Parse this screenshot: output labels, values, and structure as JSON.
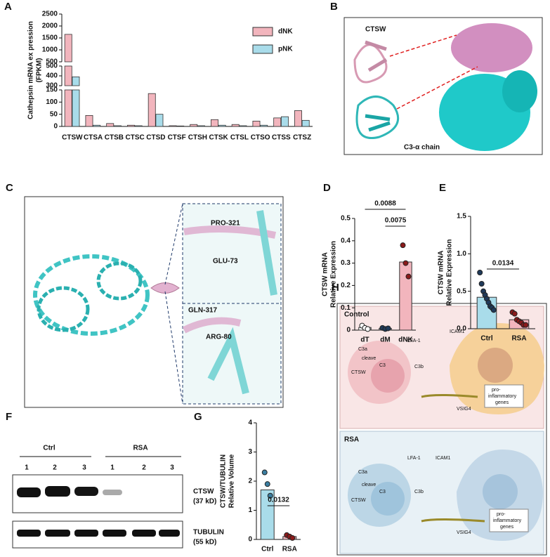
{
  "chart_data": [
    {
      "panel": "A",
      "type": "bar",
      "categories": [
        "CTSW",
        "CTSA",
        "CTSB",
        "CTSC",
        "CTSD",
        "CTSF",
        "CTSH",
        "CTSK",
        "CTSL",
        "CTSO",
        "CTSS",
        "CTSZ"
      ],
      "series": [
        {
          "name": "dNK",
          "color": "#f2b5bd",
          "values": [
            1650,
            45,
            12,
            5,
            135,
            3,
            8,
            28,
            8,
            22,
            35,
            65
          ]
        },
        {
          "name": "pNK",
          "color": "#a9dcea",
          "values": [
            390,
            5,
            3,
            3,
            50,
            2,
            3,
            5,
            3,
            5,
            40,
            25
          ]
        }
      ],
      "ylabel": "Cathepsin mRNA ex pression",
      "ylabel_unit": "(FPKM)",
      "y_segments": [
        {
          "ylim": [
            0,
            150
          ],
          "yticks": [
            0,
            50,
            100,
            150
          ]
        },
        {
          "ylim": [
            300,
            500
          ],
          "yticks": [
            300,
            400,
            500
          ]
        },
        {
          "ylim": [
            500,
            2500
          ],
          "yticks": [
            500,
            1000,
            1500,
            2000,
            2500
          ]
        }
      ],
      "legend": "upper right"
    },
    {
      "panel": "D",
      "type": "bar",
      "categories": [
        "dT",
        "dM",
        "dNK"
      ],
      "values": [
        0.012,
        0.008,
        0.305
      ],
      "colors": [
        "#ffffff",
        "#9aaac0",
        "#f2b5bd"
      ],
      "points": [
        [
          0.02,
          0.01,
          0.005
        ],
        [
          0.01,
          0.005,
          0.008
        ],
        [
          0.38,
          0.3,
          0.24
        ]
      ],
      "point_colors": [
        "#ffffff",
        "#1f3a5a",
        "#8b1a1a"
      ],
      "ylim": [
        0,
        0.5
      ],
      "yticks": [
        0,
        0.1,
        0.2,
        0.3,
        0.4,
        0.5
      ],
      "ylabel": "CTSW mRNA",
      "ylabel_unit": "Relative Expression",
      "annotations": [
        "0.0088",
        "0.0075"
      ]
    },
    {
      "panel": "E",
      "type": "bar",
      "categories": [
        "Ctrl",
        "RSA"
      ],
      "values": [
        0.42,
        0.12
      ],
      "colors": [
        "#a9dcea",
        "#f2b5bd"
      ],
      "points": [
        [
          0.75,
          0.6,
          0.5,
          0.45,
          0.4,
          0.35,
          0.3,
          0.28,
          0.25
        ],
        [
          0.22,
          0.2,
          0.12,
          0.1,
          0.08,
          0.05,
          0.05
        ]
      ],
      "point_colors": [
        "#1f3a5a",
        "#8b1a1a"
      ],
      "ylim": [
        0,
        1.5
      ],
      "yticks": [
        {
          "value": 0,
          "label": "0.0"
        },
        0.5,
        {
          "value": 1,
          "label": "1.0"
        },
        1.5
      ],
      "ylabel": "CTSW mRNA",
      "ylabel_unit": "Relative Expression",
      "annotations": [
        "0.0134"
      ]
    },
    {
      "panel": "G",
      "type": "bar",
      "categories": [
        "Ctrl",
        "RSA"
      ],
      "values": [
        1.7,
        0.1
      ],
      "colors": [
        "#a9dcea",
        "#f2b5bd"
      ],
      "points": [
        [
          2.3,
          1.9,
          1.5
        ],
        [
          0.15,
          0.1,
          0.05
        ]
      ],
      "point_colors": [
        "#3b7ea1",
        "#8b1a1a"
      ],
      "ylim": [
        0,
        4
      ],
      "yticks": [
        0,
        1,
        2,
        3,
        4
      ],
      "ylabel": "CTSW/TUBULIN",
      "ylabel_unit": "Relative Volume",
      "annotations": [
        "0.0132"
      ]
    }
  ],
  "panel_b": {
    "label": "B",
    "top": "CTSW",
    "bottom": "C3-α chain"
  },
  "panel_c": {
    "label": "C",
    "residues": [
      "PRO-321",
      "GLU-73",
      "GLN-317",
      "ARG-80"
    ]
  },
  "panel_f": {
    "label": "F",
    "groups": [
      "Ctrl",
      "RSA"
    ],
    "lanes": [
      "1",
      "2",
      "3",
      "1",
      "2",
      "3"
    ],
    "bands": [
      {
        "name": "CTSW",
        "size": "(37 kD)"
      },
      {
        "name": "TUBULIN",
        "size": "(55 kD)"
      }
    ]
  },
  "panel_h": {
    "label": "H",
    "control": {
      "title": "Control",
      "labels": [
        "C3a",
        "LFA-1",
        "ICAM1",
        "cleave",
        "C3",
        "C3b",
        "CTSW",
        "VSIG4",
        "pro-",
        "inflammatory",
        "genes"
      ]
    },
    "rsa": {
      "title": "RSA",
      "labels": [
        "C3a",
        "LFA-1",
        "ICAM1",
        "cleave",
        "C3",
        "C3b",
        "CTSW",
        "VSIG4",
        "pro-",
        "inflammatory",
        "genes"
      ]
    }
  }
}
